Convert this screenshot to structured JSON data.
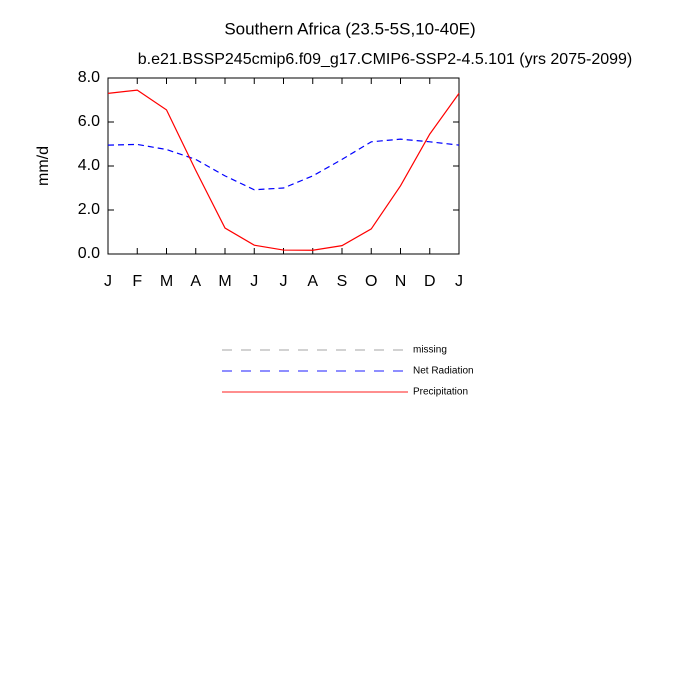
{
  "chart_data": {
    "type": "line",
    "title": "Southern Africa (23.5-5S,10-40E)",
    "subtitle": "b.e21.BSSP245cmip6.f09_g17.CMIP6-SSP2-4.5.101 (yrs 2075-2099)",
    "y_label": "mm/d",
    "categories": [
      "J",
      "F",
      "M",
      "A",
      "M",
      "J",
      "J",
      "A",
      "S",
      "O",
      "N",
      "D",
      "J"
    ],
    "series": [
      {
        "name": "missing",
        "color": "#999999",
        "dash": true,
        "values": [
          null,
          null,
          null,
          null,
          null,
          null,
          null,
          null,
          null,
          null,
          null,
          null,
          null
        ]
      },
      {
        "name": "Net Radiation",
        "color": "#0000ff",
        "dash": true,
        "values": [
          4.95,
          4.98,
          4.75,
          4.3,
          3.55,
          2.92,
          3.0,
          3.55,
          4.3,
          5.1,
          5.22,
          5.1,
          4.95
        ]
      },
      {
        "name": "Precipitation",
        "color": "#ff0000",
        "dash": false,
        "values": [
          7.3,
          7.45,
          6.55,
          3.8,
          1.18,
          0.4,
          0.18,
          0.17,
          0.38,
          1.14,
          3.1,
          5.45,
          7.3
        ]
      }
    ],
    "ylim": [
      0,
      8
    ],
    "yticks": [
      {
        "value": 0,
        "label": "0.0"
      },
      {
        "value": 2,
        "label": "2.0"
      },
      {
        "value": 4,
        "label": "4.0"
      },
      {
        "value": 6,
        "label": "6.0"
      },
      {
        "value": 8,
        "label": "8.0"
      }
    ],
    "grid": false
  }
}
